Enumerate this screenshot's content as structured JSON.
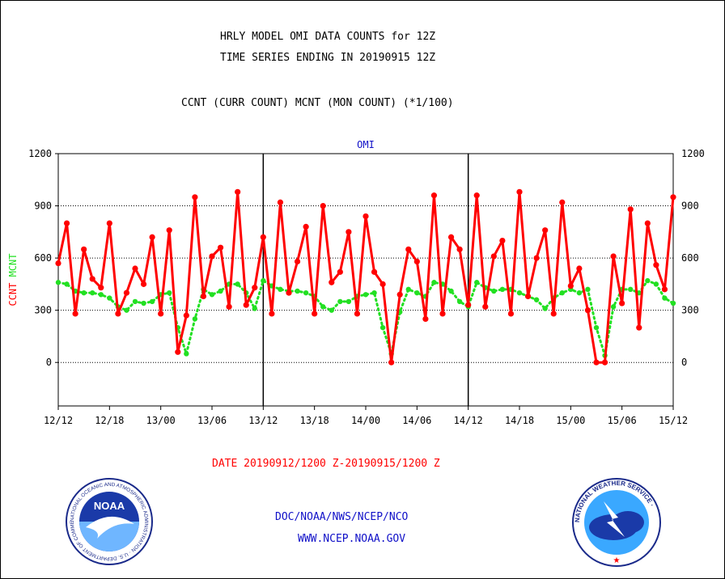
{
  "header": {
    "title_line1": "HRLY MODEL OMI DATA COUNTS for 12Z",
    "title_line2": "TIME SERIES ENDING IN 20190915 12Z",
    "subtitle": "CCNT (CURR COUNT) MCNT (MON COUNT) (*1/100)"
  },
  "footer": {
    "date_range": "DATE 20190912/1200 Z-20190915/1200 Z",
    "org": "DOC/NOAA/NWS/NCEP/NCO",
    "url": "WWW.NCEP.NOAA.GOV"
  },
  "logos": {
    "noaa_text": "NOAA",
    "noaa_ring": "NATIONAL OCEANIC AND ATMOSPHERIC ADMINISTRATION · U.S. DEPARTMENT OF COMMERCE ·",
    "nws_ring": "NATIONAL WEATHER SERVICE ·"
  },
  "colors": {
    "ccnt": "#ff0000",
    "mcnt": "#22e022",
    "text_blue": "#1010c8",
    "axis": "#000000"
  },
  "chart_data": {
    "type": "line",
    "title": "OMI",
    "ylabel_left_series": [
      "CCNT",
      "MCNT"
    ],
    "ylim": [
      -250,
      1200
    ],
    "yticks": [
      0,
      300,
      600,
      900,
      1200
    ],
    "xlim": [
      0,
      72
    ],
    "x_unit": "hours since 20190912/1200 Z",
    "x_tick_positions": [
      0,
      6,
      12,
      18,
      24,
      30,
      36,
      42,
      48,
      54,
      60,
      66,
      72
    ],
    "x_tick_labels": [
      "12/12",
      "12/18",
      "13/00",
      "13/06",
      "13/12",
      "13/18",
      "14/00",
      "14/06",
      "14/12",
      "14/18",
      "15/00",
      "15/06",
      "15/12"
    ],
    "day_dividers": [
      24,
      48
    ],
    "grid": "horizontal dotted at yticks",
    "series": [
      {
        "name": "CCNT",
        "style": "solid line with dots",
        "values": [
          570,
          800,
          280,
          650,
          480,
          430,
          800,
          280,
          400,
          540,
          450,
          720,
          280,
          760,
          60,
          270,
          950,
          380,
          610,
          660,
          320,
          980,
          330,
          430,
          720,
          280,
          920,
          400,
          580,
          780,
          280,
          900,
          460,
          520,
          750,
          280,
          840,
          520,
          450,
          0,
          390,
          650,
          580,
          250,
          960,
          280,
          720,
          650,
          330,
          960,
          320,
          610,
          700,
          280,
          980,
          380,
          600,
          760,
          280,
          920,
          440,
          540,
          300,
          0,
          0,
          610,
          340,
          880,
          200,
          800,
          560,
          420,
          950
        ]
      },
      {
        "name": "MCNT",
        "style": "dotted line",
        "values": [
          460,
          450,
          410,
          400,
          400,
          390,
          370,
          320,
          300,
          350,
          340,
          350,
          390,
          400,
          200,
          50,
          250,
          420,
          390,
          410,
          450,
          450,
          400,
          310,
          470,
          440,
          420,
          410,
          410,
          400,
          380,
          320,
          300,
          350,
          350,
          380,
          390,
          400,
          200,
          50,
          290,
          420,
          400,
          380,
          460,
          450,
          410,
          350,
          320,
          460,
          430,
          410,
          420,
          420,
          400,
          380,
          360,
          310,
          370,
          400,
          420,
          400,
          420,
          200,
          40,
          320,
          420,
          420,
          400,
          470,
          450,
          370,
          340
        ]
      }
    ],
    "legend": "left axis label: CCNT (red) MCNT (green)"
  }
}
